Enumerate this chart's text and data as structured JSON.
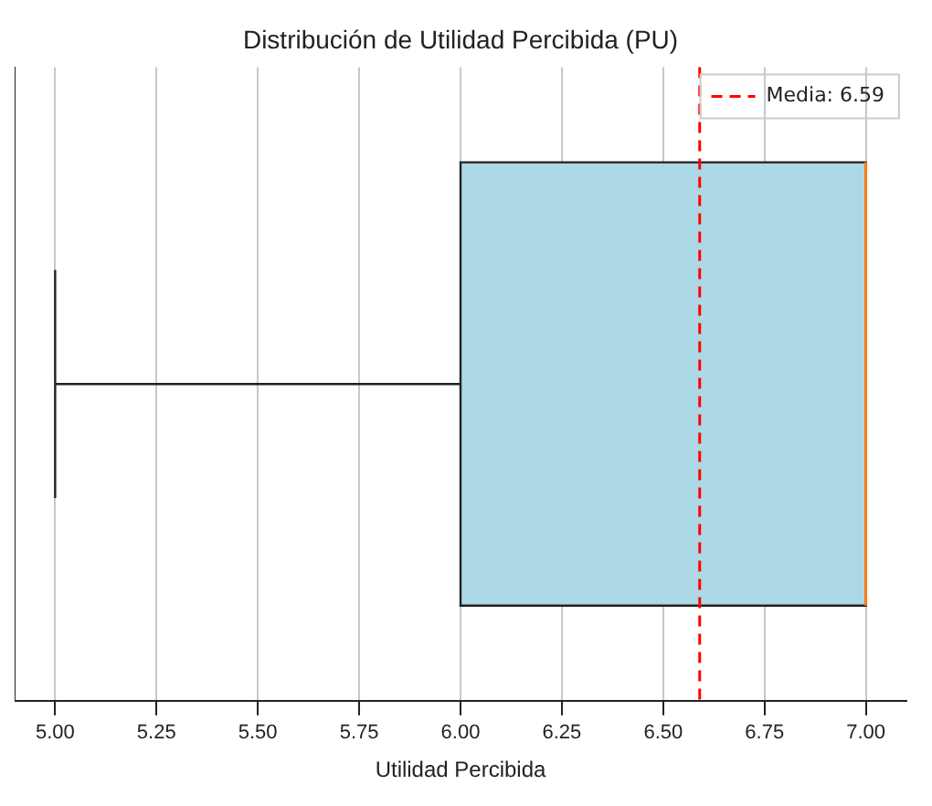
{
  "chart_data": {
    "type": "box",
    "title": "Distribución de Utilidad Percibida (PU)",
    "xlabel": "Utilidad Percibida",
    "orientation": "horizontal",
    "categories": [
      null
    ],
    "boxes": [
      {
        "low": 5,
        "q1": 6,
        "median": 7,
        "q3": 7,
        "high": 7
      }
    ],
    "color": "#add8e6",
    "xlim": [
      4.9,
      7.1
    ],
    "xticks": [
      {
        "value": 5,
        "label": "5.00"
      },
      {
        "value": 5.25,
        "label": "5.25"
      },
      {
        "value": 5.5,
        "label": "5.50"
      },
      {
        "value": 5.75,
        "label": "5.75"
      },
      {
        "value": 6,
        "label": "6.00"
      },
      {
        "value": 6.25,
        "label": "6.25"
      },
      {
        "value": 6.5,
        "label": "6.50"
      },
      {
        "value": 6.75,
        "label": "6.75"
      },
      {
        "value": 7,
        "label": "7.00"
      }
    ],
    "ref_lines": [
      {
        "axis": "x",
        "value": 6.59,
        "label": "Media: 6.59",
        "color": "#ff0000",
        "line_style": "dashed"
      }
    ],
    "grid": "x",
    "legend": "top right",
    "tick_labels": "x"
  }
}
